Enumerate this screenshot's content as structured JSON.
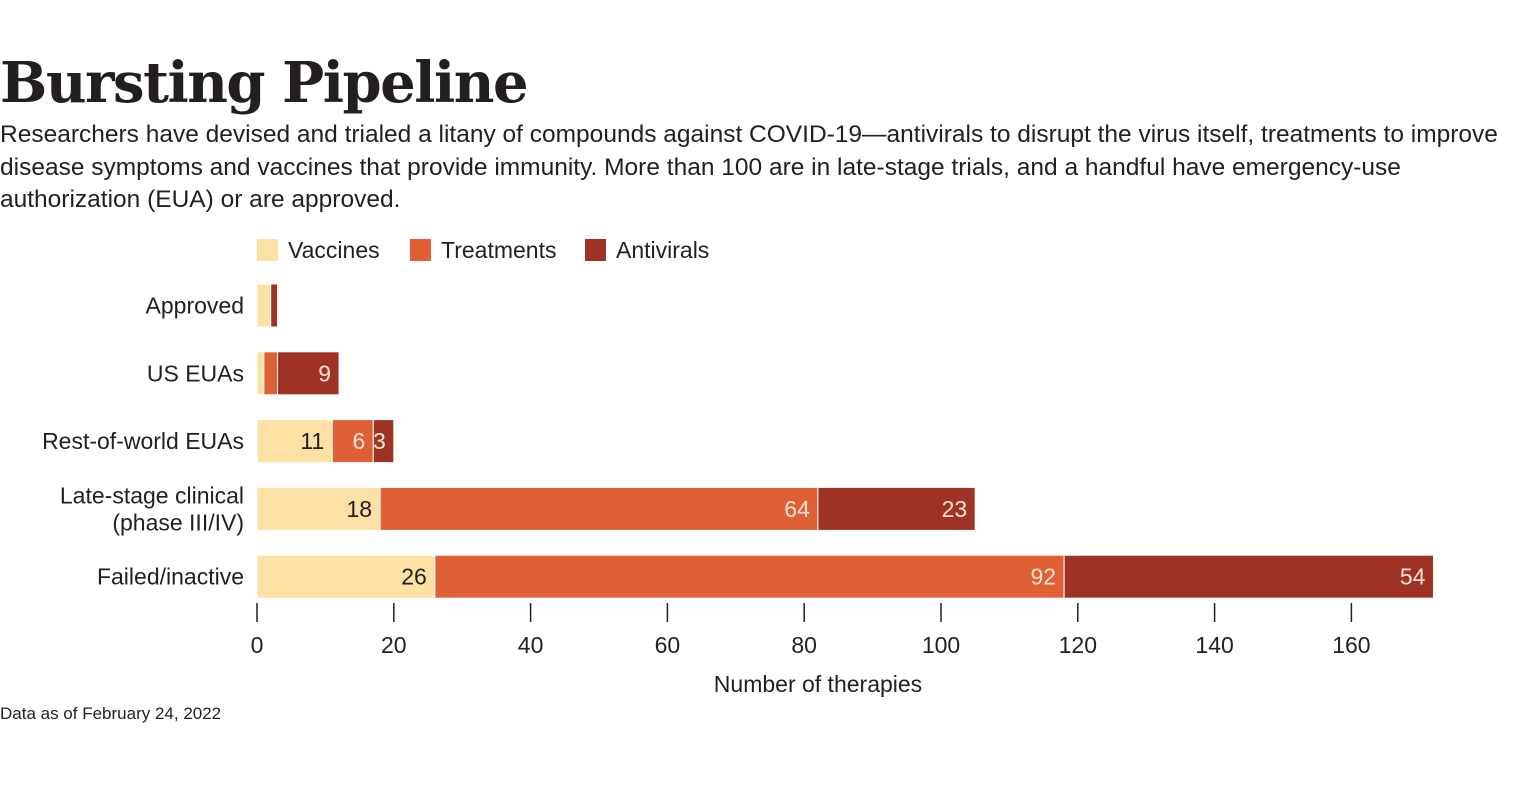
{
  "header": {
    "title": "Bursting Pipeline",
    "subtitle": "Researchers have devised and trialed a litany of compounds against COVID-19—antivirals to disrupt the virus itself, treatments to improve disease symptoms and vaccines that provide immunity. More than 100 are in late-stage trials, and a handful have emergency-use authorization (EUA) or are approved."
  },
  "footnote": "Data as of February 24, 2022",
  "chart_data": {
    "type": "bar",
    "orientation": "horizontal",
    "stacked": true,
    "categories": [
      "Approved",
      "US EUAs",
      "Rest-of-world EUAs",
      "Late-stage clinical\n(phase III/IV)",
      "Failed/inactive"
    ],
    "series": [
      {
        "name": "Vaccines",
        "color": "#fde0a3",
        "label_color": "#231f20",
        "values": [
          2,
          1,
          11,
          18,
          26
        ],
        "labels": [
          "",
          "",
          "11",
          "18",
          "26"
        ]
      },
      {
        "name": "Treatments",
        "color": "#e06036",
        "label_color": "#fde3d4",
        "values": [
          0,
          2,
          6,
          64,
          92
        ],
        "labels": [
          "",
          "",
          "6",
          "64",
          "92"
        ]
      },
      {
        "name": "Antivirals",
        "color": "#9e3225",
        "label_color": "#fde3d4",
        "values": [
          1,
          9,
          3,
          23,
          54
        ],
        "labels": [
          "",
          "9",
          "3",
          "23",
          "54"
        ]
      }
    ],
    "xlabel": "Number of therapies",
    "xlim": [
      0,
      172
    ],
    "xticks": [
      0,
      20,
      40,
      60,
      80,
      100,
      120,
      140,
      160
    ],
    "legend": "top",
    "grid": false
  }
}
